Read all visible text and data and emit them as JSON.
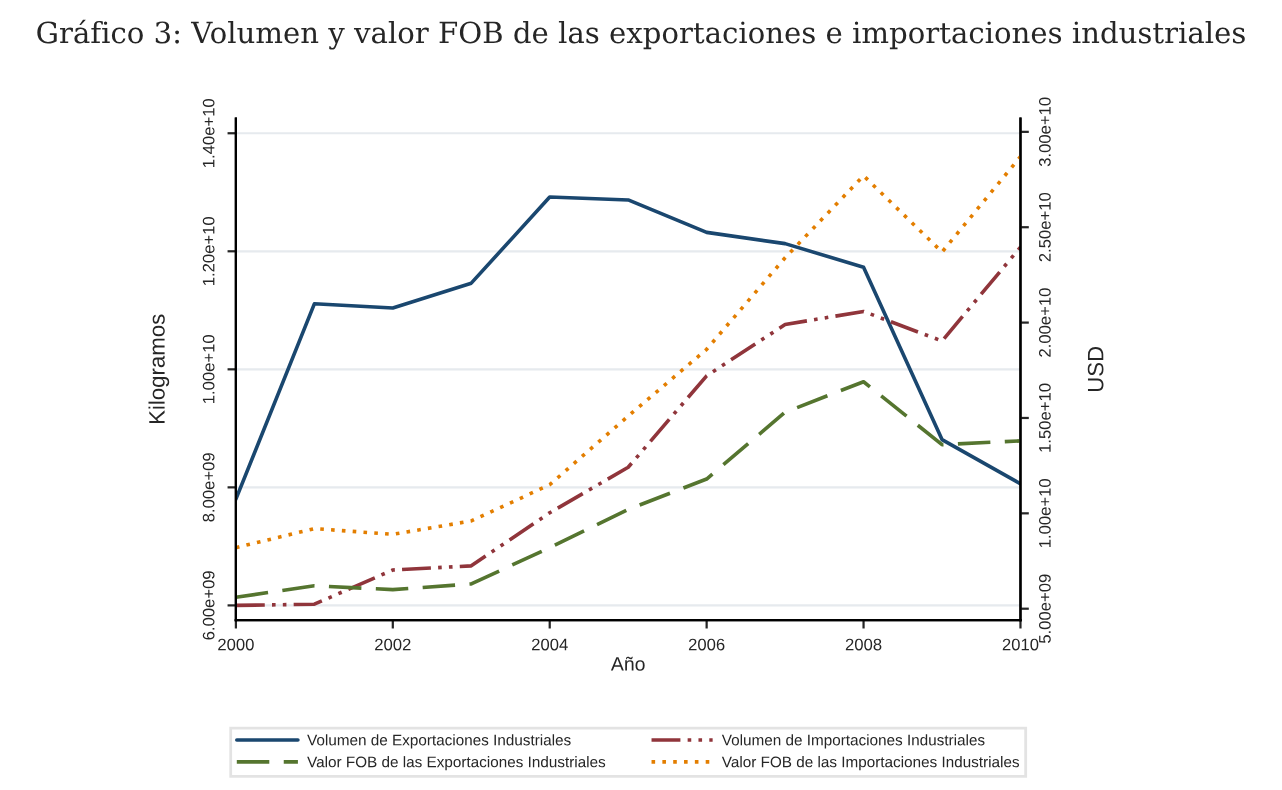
{
  "chart_data": {
    "type": "line",
    "title": "Gráfico 3: Volumen y valor FOB de las exportaciones e importaciones industriales",
    "xlabel": "Año",
    "ylabel": "Kilogramos",
    "y2label": "USD",
    "x": [
      2000,
      2001,
      2002,
      2003,
      2004,
      2005,
      2006,
      2007,
      2008,
      2009,
      2010
    ],
    "series": [
      {
        "name": "Volumen de Exportaciones Industriales",
        "color": "#1a476f",
        "line_style": "solid",
        "values": [
          7800000000.0,
          11110000000.0,
          11040000000.0,
          11460000000.0,
          12920000000.0,
          12870000000.0,
          12320000000.0,
          12130000000.0,
          11730000000.0,
          8810000000.0,
          8060000000.0
        ]
      },
      {
        "name": "Volumen de Importaciones Industriales",
        "color": "#90353b",
        "line_style": "dashdot",
        "values": [
          6000000000.0,
          6020000000.0,
          6600000000.0,
          6670000000.0,
          7570000000.0,
          8340000000.0,
          9890000000.0,
          10760000000.0,
          10980000000.0,
          10480000000.0,
          12070000000.0
        ]
      },
      {
        "name": "Valor FOB de las Exportaciones Industriales",
        "color": "#55752f",
        "line_style": "dashed",
        "axis": "y2",
        "values": [
          5600000000.0,
          6200000000.0,
          6000000000.0,
          6300000000.0,
          8200000000.0,
          10200000000.0,
          11800000000.0,
          15300000000.0,
          16900000000.0,
          13600000000.0,
          13800000000.0
        ]
      },
      {
        "name": "Valor FOB de las Importaciones Industriales",
        "color": "#e37e00",
        "line_style": "dotted",
        "axis": "y2",
        "values": [
          8200000000.0,
          9200000000.0,
          8900000000.0,
          9600000000.0,
          11500000000.0,
          15100000000.0,
          18600000000.0,
          23400000000.0,
          27700000000.0,
          23700000000.0,
          28700000000.0
        ]
      }
    ],
    "xlim": [
      2000,
      2010
    ],
    "xticks": [
      2000,
      2002,
      2004,
      2006,
      2008,
      2010
    ],
    "ylim": [
      5750000000.0,
      14250000000.0
    ],
    "yticks": [
      {
        "value": 6000000000.0,
        "label": "6.00e+09"
      },
      {
        "value": 8000000000.0,
        "label": "8.00e+09"
      },
      {
        "value": 10000000000.0,
        "label": "1.00e+10"
      },
      {
        "value": 12000000000.0,
        "label": "1.20e+10"
      },
      {
        "value": 14000000000.0,
        "label": "1.40e+10"
      }
    ],
    "y2lim": [
      4400000000.0,
      30700000000.0
    ],
    "y2ticks": [
      {
        "value": 5000000000.0,
        "label": "5.00e+09"
      },
      {
        "value": 10000000000.0,
        "label": "1.00e+10"
      },
      {
        "value": 15000000000.0,
        "label": "1.50e+10"
      },
      {
        "value": 20000000000.0,
        "label": "2.00e+10"
      },
      {
        "value": 25000000000.0,
        "label": "2.50e+10"
      },
      {
        "value": 30000000000.0,
        "label": "3.00e+10"
      }
    ],
    "grid": "y",
    "legend": "bottom"
  }
}
